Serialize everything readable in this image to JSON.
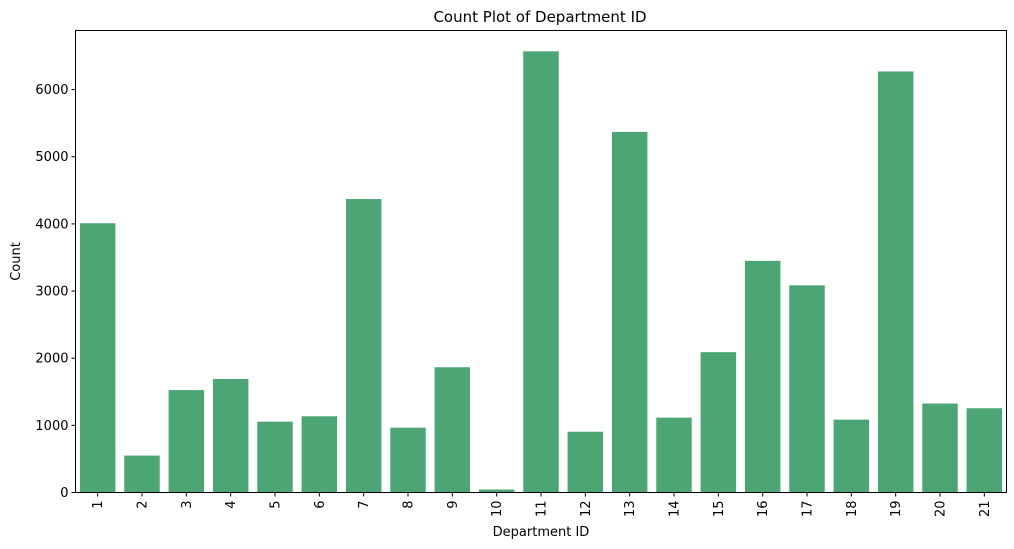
{
  "chart_data": {
    "type": "bar",
    "title": "Count Plot of Department ID",
    "xlabel": "Department ID",
    "ylabel": "Count",
    "categories": [
      "1",
      "2",
      "3",
      "4",
      "5",
      "6",
      "7",
      "8",
      "9",
      "10",
      "11",
      "12",
      "13",
      "14",
      "15",
      "16",
      "17",
      "18",
      "19",
      "20",
      "21"
    ],
    "values": [
      4010,
      550,
      1525,
      1690,
      1055,
      1135,
      4370,
      965,
      1865,
      45,
      6570,
      905,
      5370,
      1115,
      2090,
      3450,
      3085,
      1085,
      6270,
      1325,
      1255
    ],
    "ylim": [
      0,
      6880
    ],
    "yticks": [
      0,
      1000,
      2000,
      3000,
      4000,
      5000,
      6000
    ],
    "bar_color": "#4ca574",
    "grid": false,
    "legend": "none"
  }
}
